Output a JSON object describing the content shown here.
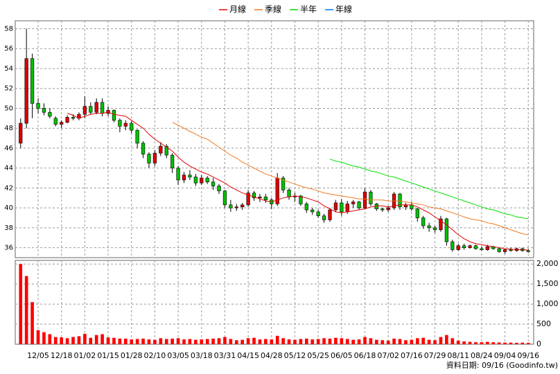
{
  "chart_data": [
    {
      "type": "candlestick",
      "legend": "top",
      "grid": true,
      "categories": [
        null,
        null,
        null,
        "12/05",
        null,
        null,
        null,
        "12/18",
        null,
        null,
        null,
        "01/02",
        null,
        null,
        null,
        "01/15",
        null,
        null,
        null,
        "01/28",
        null,
        null,
        null,
        "02/10",
        null,
        null,
        null,
        "03/05",
        null,
        null,
        null,
        "03/18",
        null,
        null,
        null,
        "03/31",
        null,
        null,
        null,
        "04/15",
        null,
        null,
        null,
        "04/28",
        null,
        null,
        null,
        "05/12",
        null,
        null,
        null,
        "05/25",
        null,
        null,
        null,
        "06/05",
        null,
        null,
        null,
        "06/18",
        null,
        null,
        null,
        "07/02",
        null,
        null,
        null,
        "07/16",
        null,
        null,
        null,
        "07/29",
        null,
        null,
        null,
        "08/11",
        null,
        null,
        null,
        "08/24",
        null,
        null,
        null,
        "09/04",
        null,
        null,
        null,
        "09/16"
      ],
      "open": [
        46.5,
        48.5,
        55,
        50.5,
        50,
        49.6,
        49,
        48.4,
        48.6,
        49.1,
        49,
        49.4,
        50.2,
        49.6,
        50.6,
        49.5,
        49.8,
        48.8,
        48.2,
        48.5,
        47.8,
        46.5,
        45.4,
        44.5,
        45.5,
        46.2,
        45.3,
        44,
        42.8,
        43.3,
        43.1,
        42.5,
        43,
        42.6,
        42.2,
        41.7,
        40.3,
        40,
        40.1,
        40.3,
        41.5,
        41,
        41.1,
        40.8,
        40.4,
        43,
        41.8,
        41.1,
        41.2,
        40.4,
        39.8,
        39.6,
        39.2,
        38.8,
        39.8,
        40.5,
        39.6,
        40.4,
        40.6,
        40,
        41.6,
        40.4,
        39.9,
        39.8,
        40,
        41.4,
        40.1,
        40.3,
        39.9,
        39,
        38.2,
        38,
        37.8,
        38.9,
        36.6,
        35.8,
        36.2,
        36,
        36.2,
        35.9,
        35.8,
        36.1,
        35.9,
        35.6,
        35.8,
        35.7,
        35.9,
        35.7
      ],
      "high": [
        49,
        58,
        55.5,
        51,
        50.5,
        50,
        49.2,
        48.8,
        49.3,
        49.4,
        49.6,
        51.2,
        50.6,
        51,
        51,
        50.2,
        49.9,
        49,
        48.8,
        48.7,
        47.9,
        46.7,
        45.6,
        45.8,
        46.6,
        46.4,
        45.5,
        44.2,
        43.6,
        43.8,
        43.4,
        43.3,
        43.2,
        43,
        42.4,
        41.8,
        40.8,
        40.4,
        40.5,
        41.8,
        41.7,
        41.4,
        41.4,
        41,
        43.5,
        43.2,
        42,
        41.5,
        41.3,
        40.6,
        40,
        39.8,
        39.4,
        40,
        40.8,
        40.9,
        40.7,
        40.8,
        40.7,
        42,
        41.8,
        40.5,
        40,
        40.2,
        41.6,
        41.5,
        40.5,
        40.6,
        40,
        39.2,
        38.5,
        38.2,
        39.2,
        39,
        36.8,
        36.4,
        36.4,
        36.3,
        36.3,
        36.1,
        36.3,
        36.2,
        36,
        35.9,
        36,
        36,
        36,
        35.9
      ],
      "low": [
        46,
        48,
        49,
        49.5,
        49.3,
        49,
        48.2,
        48,
        48.5,
        48.8,
        48.8,
        49,
        49.4,
        49.4,
        49.2,
        49.2,
        48.6,
        47.6,
        47.8,
        47.5,
        46,
        45,
        44,
        44.2,
        45.2,
        45,
        43.5,
        42.3,
        42.5,
        42.8,
        42.2,
        42.3,
        42.4,
        41.8,
        41.4,
        40,
        39.6,
        39.7,
        39.8,
        40.1,
        40.7,
        40.6,
        40.5,
        39.9,
        40.2,
        41.5,
        40.8,
        40.6,
        40.2,
        39.5,
        39.3,
        39,
        38.5,
        38.6,
        39.6,
        39.2,
        39.4,
        40,
        39.8,
        39.9,
        40.2,
        39.7,
        39.6,
        39.6,
        39.8,
        39.8,
        39.8,
        39.7,
        38.6,
        37.9,
        37.6,
        37.5,
        37.6,
        36.2,
        35.6,
        35.7,
        35.8,
        35.9,
        35.8,
        35.7,
        35.7,
        35.8,
        35.5,
        35.4,
        35.6,
        35.6,
        35.6,
        35.5
      ],
      "close": [
        48.5,
        55,
        50.5,
        50,
        49.6,
        49.2,
        48.4,
        48.6,
        49.1,
        49,
        49.4,
        50.2,
        49.6,
        50.6,
        49.5,
        49.8,
        48.8,
        48.2,
        48.5,
        47.8,
        46.5,
        45.4,
        44.5,
        45.5,
        46.2,
        45.3,
        44,
        42.8,
        43.3,
        43.1,
        42.5,
        43,
        42.6,
        42.2,
        41.7,
        40.3,
        40,
        40.1,
        40.3,
        41.5,
        41,
        41.1,
        40.8,
        40.4,
        43,
        41.8,
        41.1,
        41.2,
        40.4,
        39.8,
        39.6,
        39.2,
        38.8,
        39.8,
        40.5,
        39.6,
        40.4,
        40.6,
        40,
        41.6,
        40.4,
        39.9,
        39.8,
        40,
        41.4,
        40.1,
        40.3,
        39.9,
        39,
        38.2,
        38,
        37.8,
        38.9,
        36.6,
        35.8,
        36.2,
        36,
        36.2,
        35.9,
        35.8,
        36.1,
        35.9,
        35.6,
        35.8,
        35.7,
        35.9,
        35.7,
        35.6
      ],
      "up_color": "#e00000",
      "down_color": "#00c000",
      "ylim": [
        35,
        58.8
      ],
      "yticks": [
        36,
        38,
        40,
        42,
        44,
        46,
        48,
        50,
        52,
        54,
        56,
        58
      ],
      "series": [
        {
          "name": "月線",
          "color": "#e00000",
          "values": [
            null,
            null,
            null,
            null,
            null,
            null,
            null,
            null,
            49.5,
            49.3,
            49,
            49.2,
            49.4,
            49.5,
            49.5,
            49.6,
            49.4,
            49.3,
            49.2,
            48.8,
            48.4,
            48,
            47.4,
            46.9,
            46.5,
            46.1,
            45.7,
            45.1,
            44.6,
            44.2,
            43.9,
            43.6,
            43.4,
            43.1,
            42.8,
            42.5,
            42.1,
            41.8,
            41.5,
            41.3,
            41.1,
            40.9,
            40.7,
            40.6,
            40.8,
            41,
            41.1,
            41.2,
            41.1,
            41,
            40.8,
            40.6,
            40.2,
            39.9,
            39.6,
            39.5,
            39.6,
            39.7,
            39.8,
            39.9,
            40.1,
            40.2,
            40.2,
            40.1,
            40.2,
            40.3,
            40.3,
            40.3,
            40.1,
            39.8,
            39.5,
            39.1,
            38.7,
            38.3,
            37.8,
            37.3,
            36.9,
            36.6,
            36.4,
            36.3,
            36.2,
            36.1,
            36,
            35.9,
            35.85,
            35.8,
            35.8,
            35.75
          ]
        },
        {
          "name": "季線",
          "color": "#f07820",
          "values": [
            null,
            null,
            null,
            null,
            null,
            null,
            null,
            null,
            null,
            null,
            null,
            null,
            null,
            null,
            null,
            null,
            null,
            null,
            null,
            null,
            null,
            null,
            null,
            null,
            null,
            null,
            48.6,
            48.3,
            48,
            47.7,
            47.4,
            47.1,
            46.9,
            46.5,
            46.1,
            45.7,
            45.3,
            45,
            44.6,
            44.3,
            44,
            43.7,
            43.4,
            43.2,
            43,
            42.8,
            42.6,
            42.4,
            42.2,
            42,
            41.9,
            41.7,
            41.5,
            41.4,
            41.3,
            41.2,
            41.1,
            41,
            40.9,
            40.9,
            40.8,
            40.8,
            40.8,
            40.7,
            40.7,
            40.7,
            40.6,
            40.5,
            40.4,
            40.3,
            40.1,
            40,
            39.9,
            39.7,
            39.5,
            39.3,
            39.1,
            38.9,
            38.8,
            38.7,
            38.5,
            38.4,
            38.2,
            38,
            37.8,
            37.6,
            37.4,
            37.3
          ]
        },
        {
          "name": "半年",
          "color": "#00e000",
          "values": [
            null,
            null,
            null,
            null,
            null,
            null,
            null,
            null,
            null,
            null,
            null,
            null,
            null,
            null,
            null,
            null,
            null,
            null,
            null,
            null,
            null,
            null,
            null,
            null,
            null,
            null,
            null,
            null,
            null,
            null,
            null,
            null,
            null,
            null,
            null,
            null,
            null,
            null,
            null,
            null,
            null,
            null,
            null,
            null,
            null,
            null,
            null,
            null,
            null,
            null,
            null,
            null,
            null,
            44.9,
            44.7,
            44.6,
            44.4,
            44.2,
            44.1,
            43.9,
            43.7,
            43.6,
            43.4,
            43.2,
            43.1,
            42.9,
            42.7,
            42.5,
            42.3,
            42.1,
            41.9,
            41.7,
            41.5,
            41.3,
            41.1,
            40.9,
            40.7,
            40.5,
            40.3,
            40.1,
            39.9,
            39.8,
            39.6,
            39.4,
            39.3,
            39.1,
            39,
            38.9
          ]
        },
        {
          "name": "年線",
          "color": "#0070ff"
        }
      ]
    },
    {
      "type": "bar",
      "grid": true,
      "color": "#ff0000",
      "values": [
        2000,
        1700,
        1050,
        350,
        300,
        250,
        180,
        170,
        150,
        180,
        200,
        260,
        160,
        230,
        250,
        170,
        160,
        140,
        140,
        120,
        130,
        140,
        120,
        110,
        150,
        130,
        140,
        150,
        120,
        130,
        110,
        120,
        130,
        140,
        150,
        180,
        130,
        100,
        110,
        150,
        160,
        120,
        130,
        120,
        210,
        150,
        120,
        110,
        130,
        140,
        120,
        130,
        150,
        140,
        160,
        150,
        130,
        110,
        120,
        180,
        150,
        110,
        100,
        90,
        140,
        130,
        100,
        110,
        150,
        160,
        110,
        100,
        180,
        230,
        150,
        90,
        70,
        60,
        50,
        50,
        60,
        50,
        45,
        40,
        40,
        35,
        40,
        35
      ],
      "ylim": [
        0,
        2090
      ],
      "yticks": [
        0,
        500,
        {
          "value": 1000,
          "label": "1,000"
        },
        {
          "value": 1500,
          "label": "1,500"
        },
        {
          "value": 2000,
          "label": "2,000"
        }
      ]
    }
  ],
  "footer": "資料日期: 09/16 (Goodinfo.tw)"
}
